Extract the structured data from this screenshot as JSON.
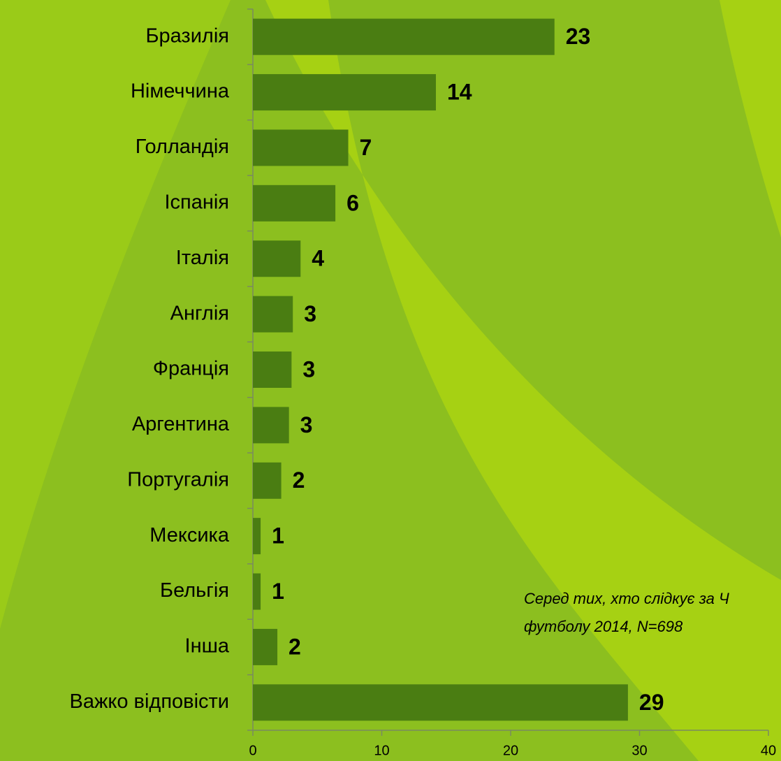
{
  "chart_data": {
    "type": "bar",
    "orientation": "horizontal",
    "categories": [
      "Бразилія",
      "Німеччина",
      "Голландія",
      "Іспанія",
      "Італія",
      "Англія",
      "Франція",
      "Аргентина",
      "Португалія",
      "Мексика",
      "Бельгія",
      "Інша",
      "Важко відповісти"
    ],
    "values": [
      23.4,
      14.2,
      7.4,
      6.4,
      3.7,
      3.1,
      3.0,
      2.8,
      2.2,
      0.6,
      0.6,
      1.9,
      29.1
    ],
    "value_labels": [
      "23",
      "14",
      "7",
      "6",
      "4",
      "3",
      "3",
      "3",
      "2",
      "1",
      "1",
      "2",
      "29"
    ],
    "color": "#4a7d12",
    "xlim": [
      0,
      40
    ],
    "xticks": [
      0,
      10,
      20,
      30,
      40
    ],
    "annotations": [
      "Серед тих, хто слідкує за Ч",
      "футболу 2014, N=698"
    ]
  }
}
